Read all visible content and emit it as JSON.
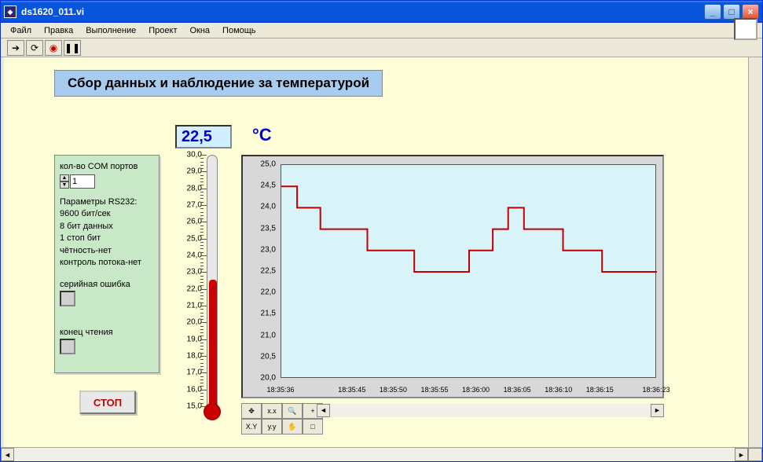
{
  "window": {
    "title": "ds1620_011.vi",
    "buttons": {
      "min": "_",
      "max": "□",
      "close": "×"
    }
  },
  "menu": [
    "Файл",
    "Правка",
    "Выполнение",
    "Проект",
    "Окна",
    "Помощь"
  ],
  "toolbar_icons": [
    "run-arrow-icon",
    "run-continuous-icon",
    "abort-icon",
    "pause-icon"
  ],
  "header": "Сбор данных и наблюдение за температурой",
  "readout": {
    "value": "22,5",
    "unit": "°C"
  },
  "settings": {
    "com_label": "кол-во COM портов",
    "com_value": "1",
    "params_lines": [
      "Параметры RS232:",
      "9600 бит/сек",
      "8 бит данных",
      "1 стоп бит",
      "чётность-нет",
      "контроль потока-нет"
    ],
    "serial_err_label": "серийная ошибка",
    "read_end_label": "конец чтения"
  },
  "stop_button": "СТОП",
  "thermometer": {
    "min": 15.0,
    "max": 30.0,
    "current": 22.5,
    "ticks": [
      "30,0",
      "29,0",
      "28,0",
      "27,0",
      "26,0",
      "25,0",
      "24,0",
      "23,0",
      "22,0",
      "21,0",
      "20,0",
      "19,0",
      "18,0",
      "17,0",
      "16,0",
      "15,0"
    ],
    "fill_color": "#cc0000"
  },
  "chart": {
    "type": "line",
    "ymin": 20.0,
    "ymax": 25.0,
    "ytick_step": 0.5,
    "yticks": [
      "25,0",
      "24,5",
      "24,0",
      "23,5",
      "23,0",
      "22,5",
      "22,0",
      "21,5",
      "21,0",
      "20,5",
      "20,0"
    ],
    "x_labels": [
      "18:35:36",
      "18:35:45",
      "18:35:50",
      "18:35:55",
      "18:36:00",
      "18:36:05",
      "18:36:10",
      "18:36:15",
      "18:36:23"
    ],
    "x_positions_pct": [
      0,
      19,
      30,
      41,
      52,
      63,
      74,
      85,
      100
    ],
    "line_color": "#c00000",
    "plot_bg": "#d8f4f8",
    "panel_bg": "#d8d8d8",
    "data": [
      [
        0.0,
        24.5
      ],
      [
        0.042,
        24.5
      ],
      [
        0.042,
        24.0
      ],
      [
        0.104,
        24.0
      ],
      [
        0.104,
        23.5
      ],
      [
        0.229,
        23.5
      ],
      [
        0.229,
        23.0
      ],
      [
        0.354,
        23.0
      ],
      [
        0.354,
        22.5
      ],
      [
        0.5,
        22.5
      ],
      [
        0.5,
        23.0
      ],
      [
        0.563,
        23.0
      ],
      [
        0.563,
        23.5
      ],
      [
        0.604,
        23.5
      ],
      [
        0.604,
        24.0
      ],
      [
        0.646,
        24.0
      ],
      [
        0.646,
        23.5
      ],
      [
        0.75,
        23.5
      ],
      [
        0.75,
        23.0
      ],
      [
        0.854,
        23.0
      ],
      [
        0.854,
        22.5
      ],
      [
        1.0,
        22.5
      ]
    ]
  },
  "colors": {
    "page_bg": "#fdfdd8",
    "header_bg": "#a8ccf0",
    "panel_bg": "#c8e8c8",
    "readout_bg": "#d0f0ff",
    "readout_fg": "#0000c0",
    "stop_fg": "#c00000"
  }
}
